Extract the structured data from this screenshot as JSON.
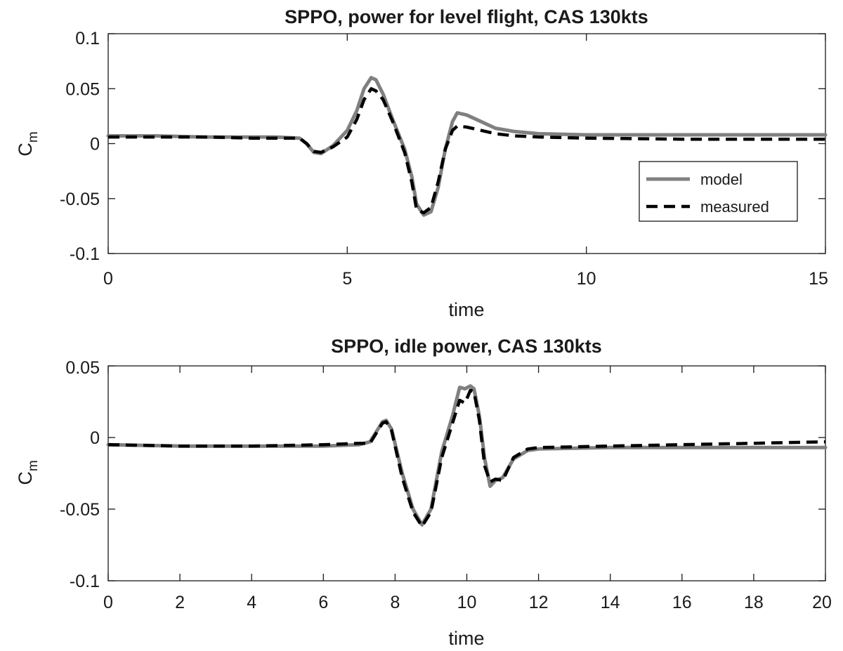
{
  "colors": {
    "model": "#808080",
    "measured": "#000000",
    "axis": "#1a1a1a"
  },
  "chart_data": [
    {
      "type": "line",
      "title": "SPPO, power for level flight, CAS 130kts",
      "xlabel": "time",
      "ylabel": "C",
      "ylabel_sub": "m",
      "xlim": [
        0,
        15
      ],
      "ylim": [
        -0.1,
        0.1
      ],
      "xticks": [
        "0",
        "5",
        "10",
        "15"
      ],
      "xtick_values": [
        0,
        5,
        10,
        15
      ],
      "yticks": [
        "-0.1",
        "-0.05",
        "0",
        "0.05",
        "0.1"
      ],
      "ytick_values": [
        -0.1,
        -0.05,
        0,
        0.05,
        0.1
      ],
      "legend": {
        "placement": "right",
        "entries": [
          "model",
          "measured"
        ]
      },
      "series": [
        {
          "name": "model",
          "x": [
            0,
            1,
            2,
            3,
            3.5,
            4.0,
            4.15,
            4.3,
            4.45,
            4.7,
            5.0,
            5.2,
            5.35,
            5.5,
            5.6,
            5.75,
            5.95,
            6.2,
            6.35,
            6.45,
            6.6,
            6.75,
            6.9,
            7.05,
            7.2,
            7.3,
            7.5,
            7.8,
            8.1,
            8.5,
            9,
            10,
            12,
            15
          ],
          "y": [
            0.007,
            0.007,
            0.006,
            0.006,
            0.006,
            0.005,
            0.0,
            -0.008,
            -0.009,
            -0.002,
            0.012,
            0.03,
            0.05,
            0.06,
            0.058,
            0.045,
            0.022,
            -0.005,
            -0.03,
            -0.055,
            -0.065,
            -0.062,
            -0.04,
            -0.005,
            0.02,
            0.028,
            0.026,
            0.02,
            0.014,
            0.011,
            0.009,
            0.008,
            0.008,
            0.008
          ]
        },
        {
          "name": "measured",
          "x": [
            0,
            1,
            2,
            3,
            3.5,
            4.0,
            4.15,
            4.3,
            4.45,
            4.7,
            5.0,
            5.2,
            5.35,
            5.5,
            5.6,
            5.75,
            5.95,
            6.2,
            6.35,
            6.45,
            6.6,
            6.75,
            6.9,
            7.05,
            7.2,
            7.3,
            7.5,
            7.8,
            8.1,
            8.5,
            9,
            10,
            12,
            15
          ],
          "y": [
            0.006,
            0.006,
            0.006,
            0.005,
            0.005,
            0.005,
            0.0,
            -0.007,
            -0.008,
            -0.003,
            0.006,
            0.022,
            0.04,
            0.05,
            0.048,
            0.04,
            0.02,
            -0.008,
            -0.035,
            -0.06,
            -0.063,
            -0.058,
            -0.035,
            -0.005,
            0.012,
            0.016,
            0.015,
            0.012,
            0.009,
            0.007,
            0.006,
            0.005,
            0.004,
            0.004
          ]
        }
      ]
    },
    {
      "type": "line",
      "title": "SPPO, idle power, CAS 130kts",
      "xlabel": "time",
      "ylabel": "C",
      "ylabel_sub": "m",
      "xlim": [
        0,
        20
      ],
      "ylim": [
        -0.1,
        0.05
      ],
      "xticks": [
        "0",
        "2",
        "4",
        "6",
        "8",
        "10",
        "12",
        "14",
        "16",
        "18",
        "20"
      ],
      "xtick_values": [
        0,
        2,
        4,
        6,
        8,
        10,
        12,
        14,
        16,
        18,
        20
      ],
      "yticks": [
        "-0.1",
        "-0.05",
        "0",
        "0.05"
      ],
      "ytick_values": [
        -0.1,
        -0.05,
        0,
        0.05
      ],
      "legend": {
        "placement": "none",
        "entries": []
      },
      "series": [
        {
          "name": "model",
          "x": [
            0,
            2,
            4,
            6,
            7,
            7.3,
            7.5,
            7.65,
            7.75,
            7.9,
            8.2,
            8.5,
            8.75,
            9.0,
            9.3,
            9.6,
            9.8,
            9.95,
            10.1,
            10.2,
            10.35,
            10.5,
            10.65,
            10.8,
            11.0,
            11.3,
            11.7,
            12,
            14,
            16,
            18,
            20
          ],
          "y": [
            -0.005,
            -0.006,
            -0.006,
            -0.006,
            -0.005,
            -0.003,
            0.005,
            0.011,
            0.012,
            0.006,
            -0.025,
            -0.05,
            -0.061,
            -0.05,
            -0.01,
            0.015,
            0.035,
            0.034,
            0.036,
            0.034,
            0.015,
            -0.015,
            -0.034,
            -0.03,
            -0.028,
            -0.015,
            -0.009,
            -0.008,
            -0.007,
            -0.007,
            -0.007,
            -0.007
          ]
        },
        {
          "name": "measured",
          "x": [
            0,
            2,
            4,
            6,
            7,
            7.3,
            7.5,
            7.65,
            7.75,
            7.9,
            8.2,
            8.5,
            8.75,
            9.0,
            9.3,
            9.6,
            9.8,
            9.95,
            10.1,
            10.2,
            10.35,
            10.5,
            10.65,
            10.8,
            11.0,
            11.3,
            11.7,
            12,
            14,
            16,
            18,
            20
          ],
          "y": [
            -0.005,
            -0.006,
            -0.006,
            -0.005,
            -0.004,
            -0.004,
            0.004,
            0.01,
            0.011,
            0.005,
            -0.028,
            -0.052,
            -0.062,
            -0.052,
            -0.014,
            0.01,
            0.026,
            0.024,
            0.033,
            0.032,
            0.012,
            -0.02,
            -0.031,
            -0.029,
            -0.03,
            -0.014,
            -0.008,
            -0.007,
            -0.006,
            -0.005,
            -0.004,
            -0.003
          ]
        }
      ]
    }
  ]
}
